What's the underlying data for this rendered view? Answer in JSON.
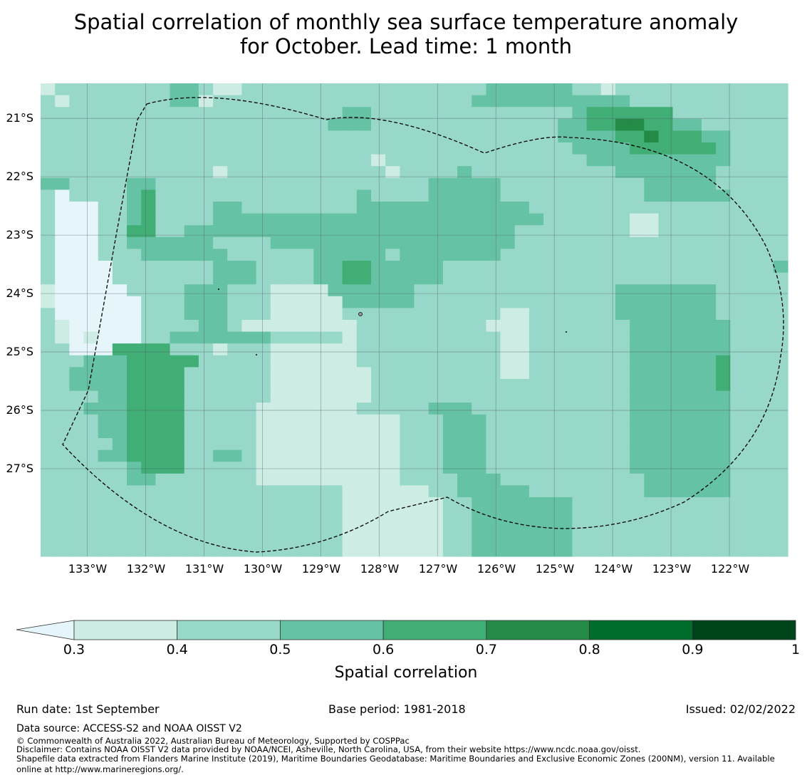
{
  "title_line1": "Spatial correlation of monthly sea surface temperature anomaly",
  "title_line2": "for October. Lead time: 1 month",
  "map": {
    "lon_range": [
      -133.8,
      -121.0
    ],
    "lat_range": [
      -20.4,
      -28.5
    ],
    "lat_ticks": [
      {
        "value": -21,
        "label": "21°S"
      },
      {
        "value": -22,
        "label": "22°S"
      },
      {
        "value": -23,
        "label": "23°S"
      },
      {
        "value": -24,
        "label": "24°S"
      },
      {
        "value": -25,
        "label": "25°S"
      },
      {
        "value": -26,
        "label": "26°S"
      },
      {
        "value": -27,
        "label": "27°S"
      }
    ],
    "lon_ticks": [
      {
        "value": -133,
        "label": "133°W"
      },
      {
        "value": -132,
        "label": "132°W"
      },
      {
        "value": -131,
        "label": "131°W"
      },
      {
        "value": -130,
        "label": "130°W"
      },
      {
        "value": -129,
        "label": "129°W"
      },
      {
        "value": -128,
        "label": "128°W"
      },
      {
        "value": -127,
        "label": "127°W"
      },
      {
        "value": -126,
        "label": "126°W"
      },
      {
        "value": -125,
        "label": "125°W"
      },
      {
        "value": -124,
        "label": "124°W"
      },
      {
        "value": -123,
        "label": "123°W"
      },
      {
        "value": -122,
        "label": "122°W"
      }
    ],
    "grid_note": "correlation classes 0=<0.3, 1=0.3-0.4, 2=0.4-0.5, 3=0.5-0.6, 4=0.6-0.7, 5=0.7-0.8; one row per latitude cell from north to south, one char per longitude cell from west to east",
    "grid_rows": [
      "1222222223321122222222222222222333333221222222222222",
      "2122222223312222222222222222223333333333322222222222",
      "2222222222222222222223322222222222222344444422222222",
      "2222222222222222222233322222222222223344554433222222",
      "2222222222222222222222222222222222223333445444332222",
      "2222222222222222222222222222222222222333344444432222",
      "2222222222222222222222212222222222222233333333332222",
      "2222222222221222222222221222232222222222333333322222",
      "3322223322222222222222222223333322222222223333322222",
      "2022223422222222222222322223333322222222223333332222",
      "2000223422223322222222333333333333222222222222222222",
      "2000223422223333333333333333333333322222211222222222",
      "2000224422333333333333333333333332222222211222222222",
      "2000223333332222333333333333333332222222222222222222",
      "2000222333333222222333332333333322222222222222222222",
      "2000022222223332222334433333222222222222222222222223",
      "2000022222223332222334433333222222222222222222222222",
      "1000002222333222111133333322222222222222333333322222",
      "1000000222333222111113333322222222222222333333322222",
      "2000000222333222111112222222222211222222333333322222",
      "2100000222233211111111222222222111222222233333332222",
      "2101000223333333222221222222222211222222233333332222",
      "2200044442221222111111222222222211222222233333332222",
      "2223334444422222111111222222222211222222233333342222",
      "2233334444222222111111122222222211222222233333342222",
      "2233334444222222111111122222222222222222233333342222",
      "2222334444222222111111122222222222222222233333332222",
      "2223334444222221111111222223332222222222233333332222",
      "2222334444222221111111111222333222222222233333332222",
      "2222334444222221111111111222333222222222233333332222",
      "2222234444222221111111111222333222222222233333332222",
      "2222334444223321111111111222333222222222233333332222",
      "2222223444222221111111111222333222222222233333332222",
      "2222223322222221111111111222233322222222223333332222",
      "2222222222222222222221111112233333222222223333332222",
      "2222222222222222222221111111223333333222222222222222",
      "2222222222222222222221111111223333333222222222222222",
      "2222222222222222222221111111223333333222222222222222",
      "2222222222222222222221111111223333333222222222222222",
      "2222222222222222222221111111223333333222222222222222"
    ]
  },
  "colorbar": {
    "colors": [
      "#ccece4",
      "#98d8c8",
      "#66c2a4",
      "#41ae76",
      "#238b45",
      "#006d2c",
      "#00441b"
    ],
    "under_color": "#e5f5f9",
    "tick_labels": [
      "0.3",
      "0.4",
      "0.5",
      "0.6",
      "0.7",
      "0.8",
      "0.9",
      "1"
    ],
    "label": "Spatial correlation"
  },
  "footer": {
    "run_date": "Run date: 1st September",
    "base_period": "Base period: 1981-2018",
    "issued": "Issued: 02/02/2022",
    "data_source": "Data source: ACCESS-S2 and NOAA OISST V2",
    "copyright": "© Commonwealth of Australia 2022, Australian Bureau of Meteorology, Supported by COSPPac",
    "disclaimer": "Disclaimer: Contains NOAA OISST V2 data provided by NOAA/NCEI, Asheville, North Carolina, USA, from their website https://www.ncdc.noaa.gov/oisst.",
    "shapefile_line1": "Shapefile data extracted from Flanders Marine Institute (2019), Maritime Boundaries Geodatabase: Maritime Boundaries and Exclusive Economic Zones (200NM), version 11. Available",
    "shapefile_line2": "online at http://www.marineregions.org/."
  }
}
